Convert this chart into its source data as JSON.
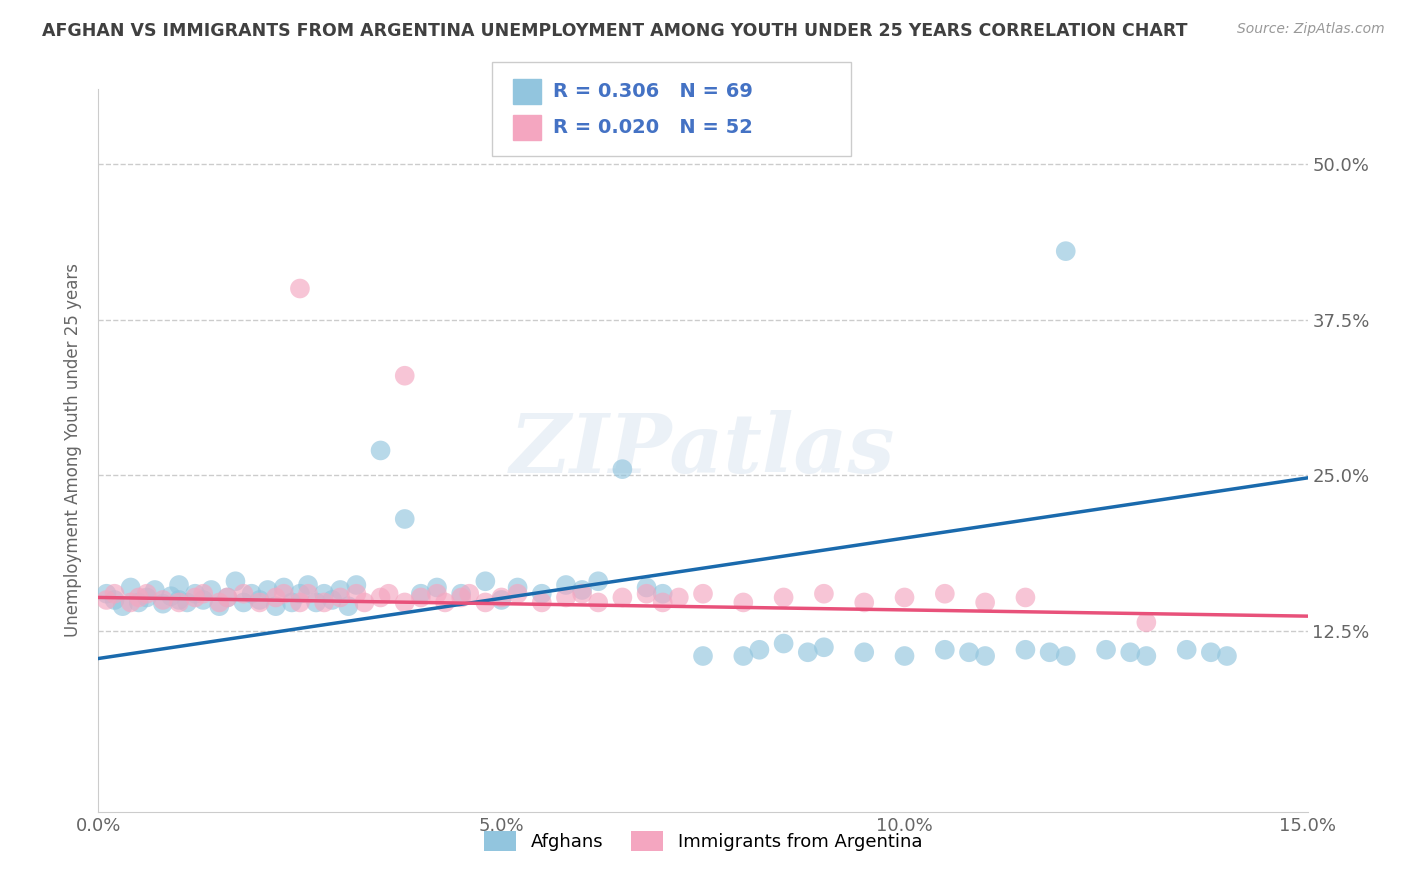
{
  "title": "AFGHAN VS IMMIGRANTS FROM ARGENTINA UNEMPLOYMENT AMONG YOUTH UNDER 25 YEARS CORRELATION CHART",
  "source": "Source: ZipAtlas.com",
  "ylabel": "Unemployment Among Youth under 25 years",
  "watermark": "ZIPatlas",
  "xlim": [
    0.0,
    0.15
  ],
  "ylim": [
    -0.02,
    0.56
  ],
  "xticks": [
    0.0,
    0.05,
    0.1,
    0.15
  ],
  "xtick_labels": [
    "0.0%",
    "5.0%",
    "10.0%",
    "15.0%"
  ],
  "yticks": [
    0.125,
    0.25,
    0.375,
    0.5
  ],
  "ytick_labels": [
    "12.5%",
    "25.0%",
    "37.5%",
    "50.0%"
  ],
  "afghan_color": "#92c5de",
  "argentina_color": "#f4a6c0",
  "afghan_line_color": "#1a6aad",
  "argentina_line_color": "#e8517a",
  "legend_afghan_label": "Afghans",
  "legend_argentina_label": "Immigrants from Argentina",
  "R_afghan": 0.306,
  "N_afghan": 69,
  "R_argentina": 0.02,
  "N_argentina": 52,
  "afghan_x": [
    0.001,
    0.002,
    0.003,
    0.004,
    0.005,
    0.006,
    0.007,
    0.008,
    0.009,
    0.01,
    0.01,
    0.011,
    0.012,
    0.013,
    0.014,
    0.015,
    0.016,
    0.017,
    0.018,
    0.019,
    0.02,
    0.021,
    0.022,
    0.023,
    0.024,
    0.025,
    0.026,
    0.027,
    0.028,
    0.029,
    0.03,
    0.031,
    0.032,
    0.035,
    0.038,
    0.04,
    0.042,
    0.045,
    0.048,
    0.05,
    0.052,
    0.055,
    0.058,
    0.06,
    0.062,
    0.065,
    0.068,
    0.07,
    0.075,
    0.08,
    0.082,
    0.085,
    0.088,
    0.09,
    0.095,
    0.1,
    0.105,
    0.108,
    0.11,
    0.115,
    0.118,
    0.12,
    0.125,
    0.128,
    0.13,
    0.135,
    0.138,
    0.14,
    0.12
  ],
  "afghan_y": [
    0.155,
    0.15,
    0.145,
    0.16,
    0.148,
    0.152,
    0.158,
    0.147,
    0.153,
    0.15,
    0.162,
    0.148,
    0.155,
    0.15,
    0.158,
    0.145,
    0.152,
    0.165,
    0.148,
    0.155,
    0.15,
    0.158,
    0.145,
    0.16,
    0.148,
    0.155,
    0.162,
    0.148,
    0.155,
    0.15,
    0.158,
    0.145,
    0.162,
    0.27,
    0.215,
    0.155,
    0.16,
    0.155,
    0.165,
    0.15,
    0.16,
    0.155,
    0.162,
    0.158,
    0.165,
    0.255,
    0.16,
    0.155,
    0.105,
    0.105,
    0.11,
    0.115,
    0.108,
    0.112,
    0.108,
    0.105,
    0.11,
    0.108,
    0.105,
    0.11,
    0.108,
    0.105,
    0.11,
    0.108,
    0.105,
    0.11,
    0.108,
    0.105,
    0.43
  ],
  "argentina_x": [
    0.001,
    0.002,
    0.004,
    0.005,
    0.006,
    0.008,
    0.01,
    0.012,
    0.013,
    0.015,
    0.016,
    0.018,
    0.02,
    0.022,
    0.023,
    0.025,
    0.026,
    0.028,
    0.03,
    0.032,
    0.033,
    0.035,
    0.036,
    0.038,
    0.04,
    0.042,
    0.043,
    0.045,
    0.046,
    0.048,
    0.05,
    0.052,
    0.055,
    0.058,
    0.06,
    0.062,
    0.065,
    0.068,
    0.07,
    0.072,
    0.075,
    0.08,
    0.085,
    0.09,
    0.095,
    0.1,
    0.105,
    0.11,
    0.115,
    0.13,
    0.025,
    0.038
  ],
  "argentina_y": [
    0.15,
    0.155,
    0.148,
    0.152,
    0.155,
    0.15,
    0.148,
    0.152,
    0.155,
    0.148,
    0.152,
    0.155,
    0.148,
    0.152,
    0.155,
    0.148,
    0.155,
    0.148,
    0.152,
    0.155,
    0.148,
    0.152,
    0.155,
    0.148,
    0.152,
    0.155,
    0.148,
    0.152,
    0.155,
    0.148,
    0.152,
    0.155,
    0.148,
    0.152,
    0.155,
    0.148,
    0.152,
    0.155,
    0.148,
    0.152,
    0.155,
    0.148,
    0.152,
    0.155,
    0.148,
    0.152,
    0.155,
    0.148,
    0.152,
    0.132,
    0.4,
    0.33
  ],
  "afghan_trend_x": [
    0.0,
    0.15
  ],
  "afghan_trend_y": [
    0.103,
    0.248
  ],
  "argentina_trend_x": [
    0.0,
    0.15
  ],
  "argentina_trend_y": [
    0.152,
    0.137
  ],
  "background_color": "#ffffff",
  "grid_color": "#cccccc",
  "title_color": "#404040",
  "legend_text_color": "#4472c4"
}
